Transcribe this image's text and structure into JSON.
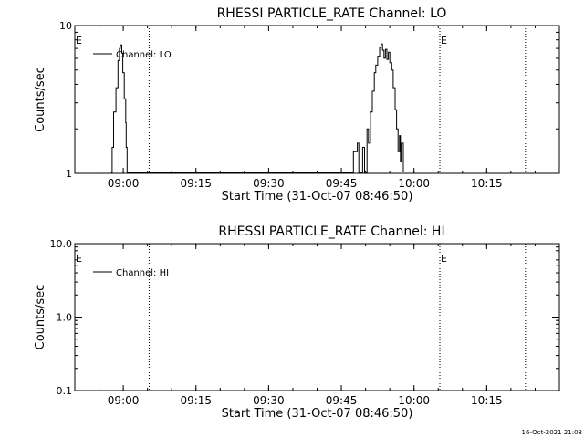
{
  "footer_timestamp": "16-Oct-2021 21:08",
  "chart_data": [
    {
      "type": "line",
      "title": "RHESSI PARTICLE_RATE Channel: LO",
      "xlabel": "Start Time (31-Oct-07 08:46:50)",
      "ylabel": "Counts/sec",
      "y_scale": "log",
      "ylim": [
        1,
        10
      ],
      "y_ticks": [
        1,
        10
      ],
      "y_tick_labels": [
        "1",
        "10"
      ],
      "x_start": "08:46:50",
      "xlim": [
        "08:50",
        "10:30"
      ],
      "x_ticks": [
        "09:00",
        "09:15",
        "09:30",
        "09:45",
        "10:00",
        "10:15"
      ],
      "legend": "top-left",
      "grid": false,
      "series": [
        {
          "name": "Channel: LO",
          "points": [
            [
              "08:57:30",
              1
            ],
            [
              "08:57:42",
              1.5
            ],
            [
              "08:58:00",
              2.6
            ],
            [
              "08:58:30",
              3.8
            ],
            [
              "08:58:54",
              5.8
            ],
            [
              "08:59:12",
              7.0
            ],
            [
              "08:59:24",
              7.4
            ],
            [
              "08:59:42",
              6.5
            ],
            [
              "08:59:54",
              4.8
            ],
            [
              "09:00:12",
              3.2
            ],
            [
              "09:00:30",
              2.2
            ],
            [
              "09:00:36",
              1.5
            ],
            [
              "09:00:48",
              1
            ],
            [
              "09:47:18",
              1
            ],
            [
              "09:47:30",
              1.4
            ],
            [
              "09:48:18",
              1.6
            ],
            [
              "09:48:36",
              1
            ],
            [
              "09:49:24",
              1.5
            ],
            [
              "09:49:48",
              1
            ],
            [
              "09:50:18",
              2.0
            ],
            [
              "09:50:36",
              1.6
            ],
            [
              "09:51:00",
              2.6
            ],
            [
              "09:51:24",
              3.6
            ],
            [
              "09:51:48",
              4.8
            ],
            [
              "09:52:06",
              5.4
            ],
            [
              "09:52:30",
              6.2
            ],
            [
              "09:52:54",
              7.1
            ],
            [
              "09:53:12",
              7.5
            ],
            [
              "09:53:30",
              6.8
            ],
            [
              "09:53:48",
              6.0
            ],
            [
              "09:54:06",
              6.9
            ],
            [
              "09:54:24",
              5.9
            ],
            [
              "09:54:42",
              6.6
            ],
            [
              "09:55:00",
              5.6
            ],
            [
              "09:55:24",
              5.0
            ],
            [
              "09:55:42",
              3.8
            ],
            [
              "09:56:06",
              2.7
            ],
            [
              "09:56:24",
              2.0
            ],
            [
              "09:56:42",
              1.4
            ],
            [
              "09:57:00",
              1.8
            ],
            [
              "09:57:12",
              1.2
            ],
            [
              "09:57:24",
              1.6
            ],
            [
              "09:57:48",
              1
            ]
          ]
        }
      ],
      "markers": [
        {
          "label": "E",
          "time": "08:46:50"
        },
        {
          "label": "E",
          "time": "10:05:20"
        }
      ],
      "dotted_lines": [
        "09:05:20",
        "10:05:20",
        "10:23:00"
      ]
    },
    {
      "type": "line",
      "title": "RHESSI PARTICLE_RATE Channel: HI",
      "xlabel": "Start Time (31-Oct-07 08:46:50)",
      "ylabel": "Counts/sec",
      "y_scale": "log",
      "ylim": [
        0.1,
        10
      ],
      "y_ticks": [
        0.1,
        1,
        10
      ],
      "y_tick_labels": [
        "0.1",
        "1.0",
        "10.0"
      ],
      "x_start": "08:46:50",
      "xlim": [
        "08:50",
        "10:30"
      ],
      "x_ticks": [
        "09:00",
        "09:15",
        "09:30",
        "09:45",
        "10:00",
        "10:15"
      ],
      "legend": "top-left",
      "grid": false,
      "series": [
        {
          "name": "Channel: HI",
          "points": []
        }
      ],
      "markers": [
        {
          "label": "E",
          "time": "08:46:50"
        },
        {
          "label": "E",
          "time": "10:05:20"
        }
      ],
      "dotted_lines": [
        "09:05:20",
        "10:05:20",
        "10:23:00"
      ]
    }
  ]
}
